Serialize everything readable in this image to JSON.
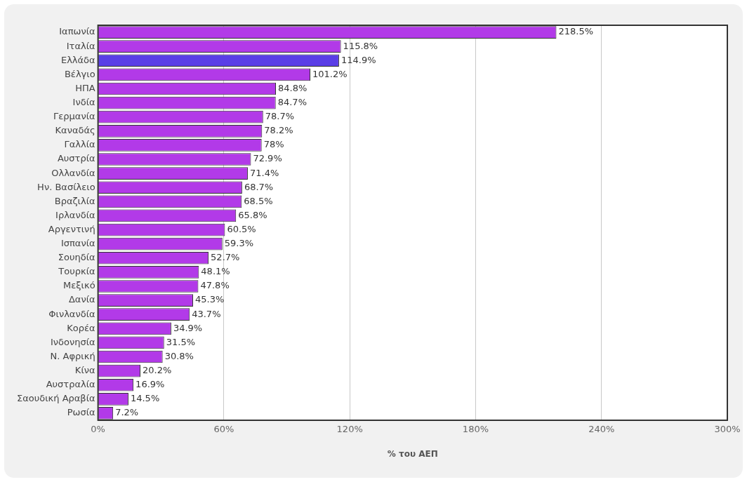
{
  "chart_data": {
    "type": "bar",
    "orientation": "horizontal",
    "xlabel": "% του ΑΕΠ",
    "categories": [
      "Ιαπωνία",
      "Ιταλία",
      "Ελλάδα",
      "Βέλγιο",
      "ΗΠΑ",
      "Ινδία",
      "Γερμανία",
      "Καναδάς",
      "Γαλλία",
      "Αυστρία",
      "Ολλανδία",
      "Ην. Βασίλειο",
      "Βραζιλία",
      "Ιρλανδία",
      "Αργεντινή",
      "Ισπανία",
      "Σουηδία",
      "Τουρκία",
      "Μεξικό",
      "Δανία",
      "Φινλανδία",
      "Κορέα",
      "Ινδονησία",
      "Ν. Αφρική",
      "Κίνα",
      "Αυστραλία",
      "Σαουδική Αραβία",
      "Ρωσία"
    ],
    "values": [
      218.5,
      115.8,
      114.9,
      101.2,
      84.8,
      84.7,
      78.7,
      78.2,
      78,
      72.9,
      71.4,
      68.7,
      68.5,
      65.8,
      60.5,
      59.3,
      52.7,
      48.1,
      47.8,
      45.3,
      43.7,
      34.9,
      31.5,
      30.8,
      20.2,
      16.9,
      14.5,
      7.2
    ],
    "value_labels": [
      "218.5%",
      "115.8%",
      "114.9%",
      "101.2%",
      "84.8%",
      "84.7%",
      "78.7%",
      "78.2%",
      "78%",
      "72.9%",
      "71.4%",
      "68.7%",
      "68.5%",
      "65.8%",
      "60.5%",
      "59.3%",
      "52.7%",
      "48.1%",
      "47.8%",
      "45.3%",
      "43.7%",
      "34.9%",
      "31.5%",
      "30.8%",
      "20.2%",
      "16.9%",
      "14.5%",
      "7.2%"
    ],
    "colors": [
      "#b23ae8",
      "#b23ae8",
      "#5a3ee6",
      "#b23ae8",
      "#b23ae8",
      "#b23ae8",
      "#b23ae8",
      "#b23ae8",
      "#b23ae8",
      "#b23ae8",
      "#b23ae8",
      "#b23ae8",
      "#b23ae8",
      "#b23ae8",
      "#b23ae8",
      "#b23ae8",
      "#b23ae8",
      "#b23ae8",
      "#b23ae8",
      "#b23ae8",
      "#b23ae8",
      "#b23ae8",
      "#b23ae8",
      "#b23ae8",
      "#b23ae8",
      "#b23ae8",
      "#b23ae8",
      "#b23ae8"
    ],
    "xlim": [
      0,
      300
    ],
    "xticks": [
      {
        "value": 0,
        "label": "0%"
      },
      {
        "value": 60,
        "label": "60%"
      },
      {
        "value": 120,
        "label": "120%"
      },
      {
        "value": 180,
        "label": "180%"
      },
      {
        "value": 240,
        "label": "240%"
      },
      {
        "value": 300,
        "label": "300%"
      }
    ],
    "grid": "x",
    "legend": false
  }
}
